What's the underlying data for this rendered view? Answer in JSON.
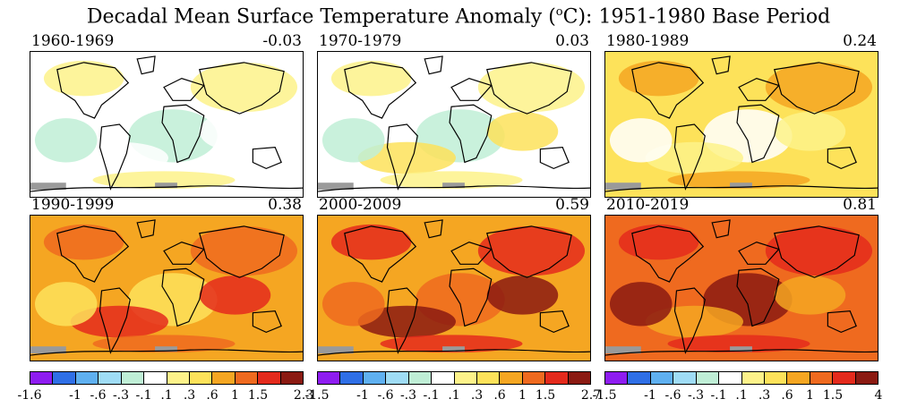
{
  "title_main": "Decadal Mean Surface Temperature Anomaly (",
  "title_sup": "o",
  "title_rest": "C): 1951-1980 Base Period",
  "panels": [
    {
      "period": "1960-1969",
      "mean": "-0.03",
      "fill": "#ffffff",
      "blob1": "#fdf28a",
      "blob2": "#bfeed6",
      "blob3": "#ffffff"
    },
    {
      "period": "1970-1979",
      "mean": "0.03",
      "fill": "#ffffff",
      "blob1": "#fdf28a",
      "blob2": "#bfeed6",
      "blob3": "#fde25a"
    },
    {
      "period": "1980-1989",
      "mean": "0.24",
      "fill": "#fde25a",
      "blob1": "#f5a622",
      "blob2": "#ffffff",
      "blob3": "#fdf28a"
    },
    {
      "period": "1990-1999",
      "mean": "0.38",
      "fill": "#f5a622",
      "blob1": "#ef6a1f",
      "blob2": "#fde25a",
      "blob3": "#e42a1c"
    },
    {
      "period": "2000-2009",
      "mean": "0.59",
      "fill": "#f5a622",
      "blob1": "#e42a1c",
      "blob2": "#ef6a1f",
      "blob3": "#8b1a12"
    },
    {
      "period": "2010-2019",
      "mean": "0.81",
      "fill": "#ef6a1f",
      "blob1": "#e42a1c",
      "blob2": "#8b1a12",
      "blob3": "#f5a622"
    }
  ],
  "legend_colors": [
    "#8e1cf0",
    "#2f6fe6",
    "#5fb0f0",
    "#9fdcf5",
    "#bfeed6",
    "#ffffff",
    "#fdf28a",
    "#fde25a",
    "#f5a622",
    "#ef6a1f",
    "#e42a1c",
    "#8b1a12"
  ],
  "legends": [
    {
      "ticks": [
        "-1.6",
        "-1",
        "-.6",
        "-.3",
        "-.1",
        ".1",
        ".3",
        ".6",
        "1",
        "1.5",
        "2.3"
      ]
    },
    {
      "ticks": [
        "-1.5",
        "-1",
        "-.6",
        "-.3",
        "-.1",
        ".1",
        ".3",
        ".6",
        "1",
        "1.5",
        "2.7"
      ]
    },
    {
      "ticks": [
        "-1.5",
        "-1",
        "-.6",
        "-.3",
        "-.1",
        ".1",
        ".3",
        ".6",
        "1",
        "1.5",
        "4"
      ]
    }
  ]
}
